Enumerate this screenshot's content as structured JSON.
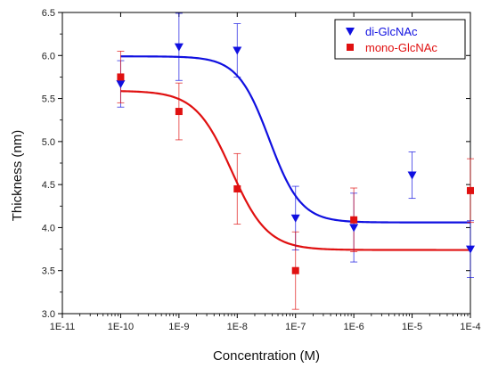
{
  "chart_data": {
    "type": "scatter",
    "title": "",
    "xlabel": "Concentration (M)",
    "ylabel": "Thickness (nm)",
    "xscale": "log",
    "xlim": [
      1e-11,
      0.0001
    ],
    "ylim": [
      3.0,
      6.5
    ],
    "x_tick_labels": [
      "1E-11",
      "1E-10",
      "1E-9",
      "1E-8",
      "1E-7",
      "1E-6",
      "1E-5",
      "1E-4"
    ],
    "y_tick_labels": [
      "3.0",
      "3.5",
      "4.0",
      "4.5",
      "5.0",
      "5.5",
      "6.0",
      "6.5"
    ],
    "grid": false,
    "legend_position": "top-right",
    "series": [
      {
        "name": "di-GlcNAc",
        "color": "#1010e0",
        "marker": "triangle-down",
        "x": [
          1e-10,
          1e-09,
          1e-08,
          1e-07,
          1e-06,
          1e-05,
          0.0001
        ],
        "y": [
          5.67,
          6.1,
          6.06,
          4.11,
          4.0,
          4.61,
          3.75
        ],
        "error": [
          0.27,
          0.39,
          0.31,
          0.37,
          0.4,
          0.27,
          0.33
        ],
        "fit": {
          "top": 5.99,
          "bottom": 4.06,
          "log_ec50": -7.45,
          "hill": 1.6
        }
      },
      {
        "name": "mono-GlcNAc",
        "color": "#e01010",
        "marker": "square",
        "x": [
          1e-10,
          1e-09,
          1e-08,
          1e-07,
          1e-06,
          0.0001
        ],
        "y": [
          5.75,
          5.35,
          4.45,
          3.5,
          4.09,
          4.43
        ],
        "error": [
          0.3,
          0.33,
          0.41,
          0.45,
          0.37,
          0.37
        ],
        "fit": {
          "top": 5.59,
          "bottom": 3.74,
          "log_ec50": -8.1,
          "hill": 1.4
        }
      }
    ]
  }
}
